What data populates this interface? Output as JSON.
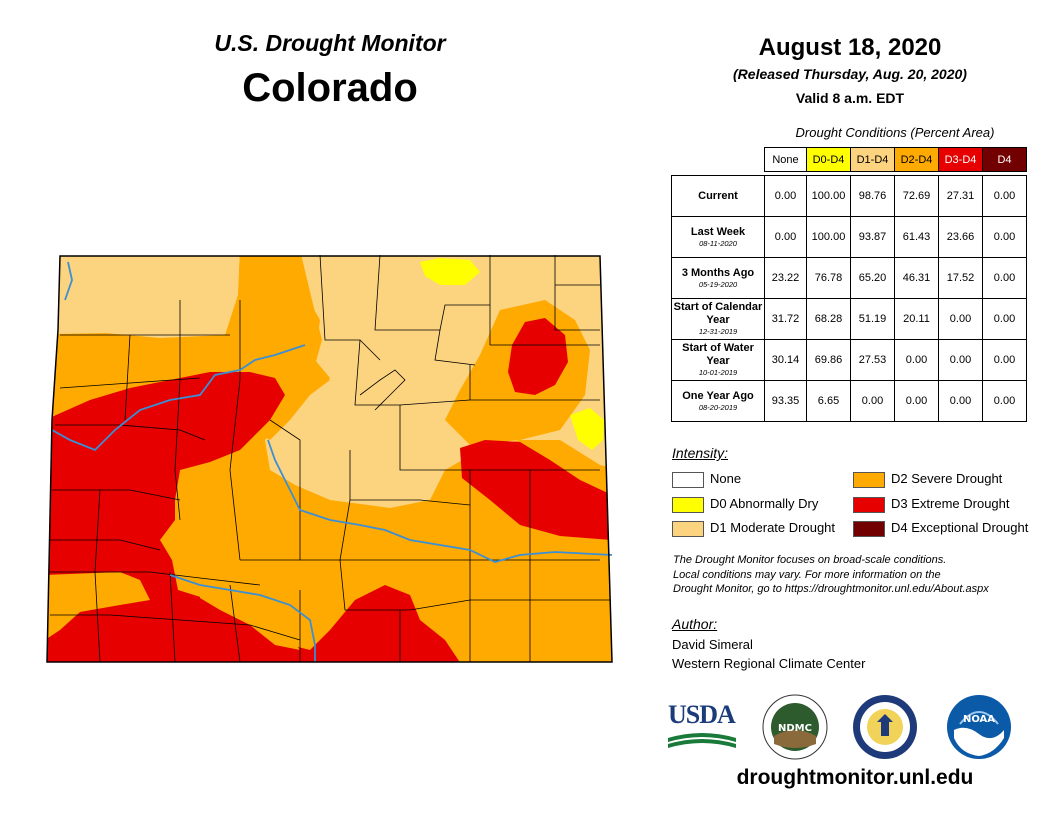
{
  "header": {
    "monitor_title": "U.S. Drought Monitor",
    "state": "Colorado",
    "date": "August 18, 2020",
    "released": "(Released Thursday, Aug. 20, 2020)",
    "valid": "Valid 8 a.m. EDT"
  },
  "table": {
    "caption": "Drought Conditions (Percent Area)",
    "columns": [
      "None",
      "D0-D4",
      "D1-D4",
      "D2-D4",
      "D3-D4",
      "D4"
    ],
    "column_colors": [
      "#ffffff",
      "#ffff00",
      "#fcd37f",
      "#ffaa00",
      "#e60000",
      "#730000"
    ],
    "rows": [
      {
        "label": "Current",
        "sub": "",
        "values": [
          "0.00",
          "100.00",
          "98.76",
          "72.69",
          "27.31",
          "0.00"
        ]
      },
      {
        "label": "Last Week",
        "sub": "08-11-2020",
        "values": [
          "0.00",
          "100.00",
          "93.87",
          "61.43",
          "23.66",
          "0.00"
        ]
      },
      {
        "label": "3 Months Ago",
        "sub": "05-19-2020",
        "values": [
          "23.22",
          "76.78",
          "65.20",
          "46.31",
          "17.52",
          "0.00"
        ]
      },
      {
        "label": "Start of Calendar Year",
        "sub": "12-31-2019",
        "values": [
          "31.72",
          "68.28",
          "51.19",
          "20.11",
          "0.00",
          "0.00"
        ]
      },
      {
        "label": "Start of Water Year",
        "sub": "10-01-2019",
        "values": [
          "30.14",
          "69.86",
          "27.53",
          "0.00",
          "0.00",
          "0.00"
        ]
      },
      {
        "label": "One Year Ago",
        "sub": "08-20-2019",
        "values": [
          "93.35",
          "6.65",
          "0.00",
          "0.00",
          "0.00",
          "0.00"
        ]
      }
    ]
  },
  "legend": {
    "title": "Intensity:",
    "items": [
      {
        "label": "None",
        "color": "#ffffff"
      },
      {
        "label": "D0 Abnormally Dry",
        "color": "#ffff00"
      },
      {
        "label": "D1 Moderate Drought",
        "color": "#fcd37f"
      },
      {
        "label": "D2 Severe Drought",
        "color": "#ffaa00"
      },
      {
        "label": "D3 Extreme Drought",
        "color": "#e60000"
      },
      {
        "label": "D4 Exceptional Drought",
        "color": "#730000"
      }
    ]
  },
  "note": {
    "line1": "The Drought Monitor focuses on broad-scale conditions.",
    "line2": "Local conditions may vary. For more information on the",
    "line3": "Drought Monitor, go to https://droughtmonitor.unl.edu/About.aspx"
  },
  "author": {
    "title": "Author:",
    "name": "David Simeral",
    "org": "Western Regional Climate Center"
  },
  "logos": {
    "usda": "USDA",
    "ndmc": "NDMC",
    "noaa": "NOAA"
  },
  "site": "droughtmonitor.unl.edu",
  "colors": {
    "river": "#3a8fd6",
    "county_border": "#000000"
  }
}
